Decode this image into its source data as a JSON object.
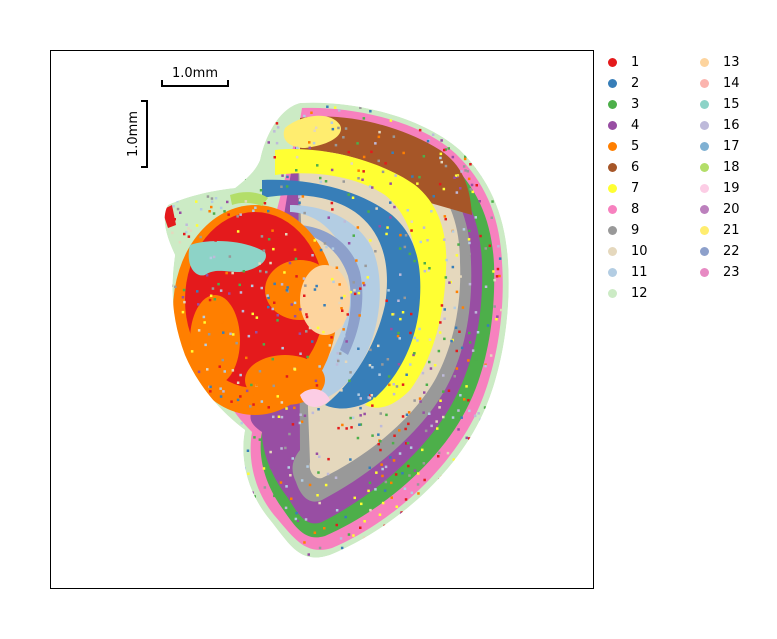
{
  "chart_data": {
    "type": "scatter",
    "title": "",
    "xlabel": "",
    "ylabel": "",
    "grid": false,
    "legend_placement": "outside-right",
    "scalebars": [
      {
        "orientation": "horizontal",
        "label": "1.0mm"
      },
      {
        "orientation": "vertical",
        "label": "1.0mm"
      }
    ],
    "series": [
      {
        "name": "1",
        "color": "#e41a1c"
      },
      {
        "name": "2",
        "color": "#377eb8"
      },
      {
        "name": "3",
        "color": "#4daf4a"
      },
      {
        "name": "4",
        "color": "#984ea3"
      },
      {
        "name": "5",
        "color": "#ff7f00"
      },
      {
        "name": "6",
        "color": "#a65628"
      },
      {
        "name": "7",
        "color": "#ffff33"
      },
      {
        "name": "8",
        "color": "#f781bf"
      },
      {
        "name": "9",
        "color": "#999999"
      },
      {
        "name": "10",
        "color": "#e5d8bd"
      },
      {
        "name": "11",
        "color": "#b3cde3"
      },
      {
        "name": "12",
        "color": "#ccebc5"
      },
      {
        "name": "13",
        "color": "#fdd49e"
      },
      {
        "name": "14",
        "color": "#fbb4ae"
      },
      {
        "name": "15",
        "color": "#8dd3c7"
      },
      {
        "name": "16",
        "color": "#bebada"
      },
      {
        "name": "17",
        "color": "#80b1d3"
      },
      {
        "name": "18",
        "color": "#b3de69"
      },
      {
        "name": "19",
        "color": "#fccde5"
      },
      {
        "name": "20",
        "color": "#bc80bd"
      },
      {
        "name": "21",
        "color": "#ffed6f"
      },
      {
        "name": "22",
        "color": "#8da0cb"
      },
      {
        "name": "23",
        "color": "#e78ac3"
      }
    ]
  }
}
